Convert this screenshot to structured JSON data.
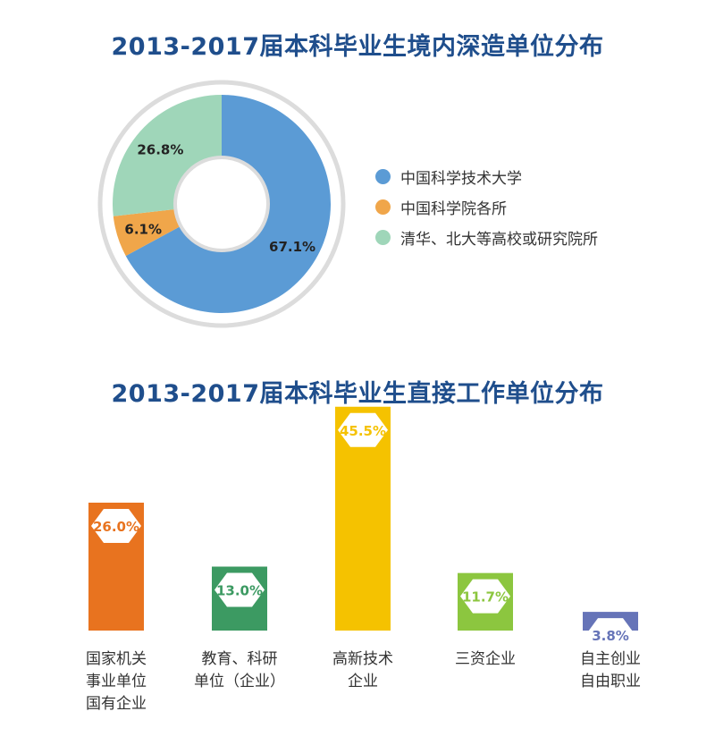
{
  "colors": {
    "title": "#1f4e8c",
    "blue": "#5b9bd5",
    "orange": "#f0a64a",
    "green": "#9fd6b9",
    "bar_orange": "#e8731f",
    "bar_green": "#3c9a62",
    "bar_yellow": "#f5c200",
    "bar_lime": "#8cc63f",
    "bar_purple": "#6674b8",
    "ring": "#dcdcdc"
  },
  "chart_data": [
    {
      "type": "pie",
      "title": "2013-2017届本科毕业生境内深造单位分布",
      "donut": true,
      "legend_position": "right",
      "slices": [
        {
          "label": "中国科学技术大学",
          "value": 67.1,
          "value_label": "67.1%",
          "color": "#5b9bd5"
        },
        {
          "label": "中国科学院各所",
          "value": 6.1,
          "value_label": "6.1%",
          "color": "#f0a64a"
        },
        {
          "label": "清华、北大等高校或研究院所",
          "value": 26.8,
          "value_label": "26.8%",
          "color": "#9fd6b9"
        }
      ]
    },
    {
      "type": "bar",
      "title": "2013-2017届本科毕业生直接工作单位分布",
      "categories": [
        [
          "国家机关",
          "事业单位",
          "国有企业"
        ],
        [
          "教育、科研",
          "单位（企业）"
        ],
        [
          "高新技术",
          "企业"
        ],
        [
          "三资企业"
        ],
        [
          "自主创业",
          "自由职业"
        ]
      ],
      "values": [
        26.0,
        13.0,
        45.5,
        11.7,
        3.8
      ],
      "value_labels": [
        "26.0%",
        "13.0%",
        "45.5%",
        "11.7%",
        "3.8%"
      ],
      "colors": [
        "#e8731f",
        "#3c9a62",
        "#f5c200",
        "#8cc63f",
        "#6674b8"
      ]
    }
  ]
}
